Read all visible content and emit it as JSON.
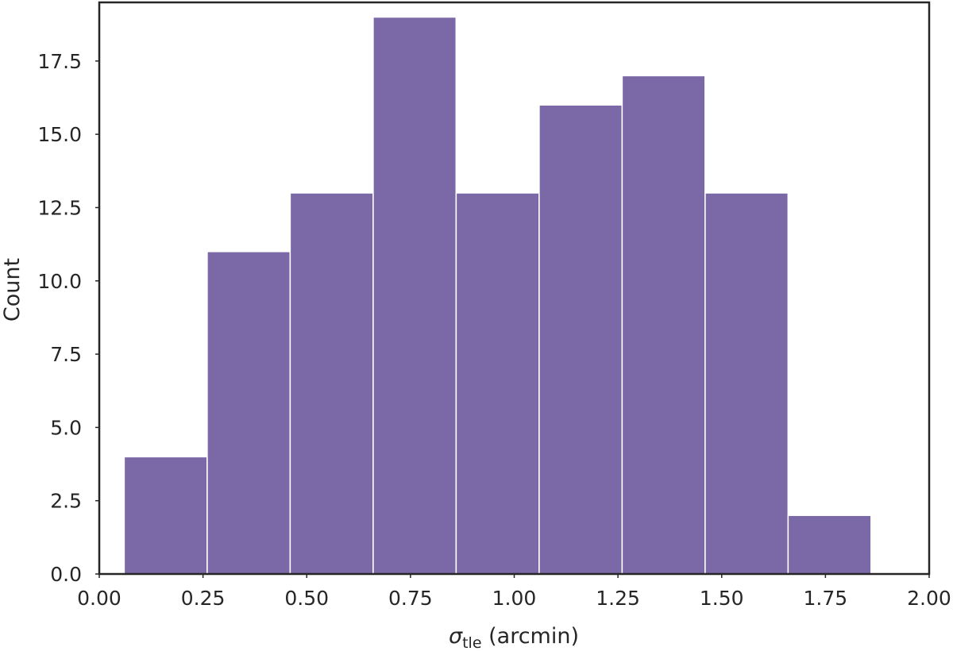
{
  "chart_data": {
    "type": "bar",
    "subtype": "histogram",
    "bin_edges": [
      0.06,
      0.26,
      0.46,
      0.66,
      0.86,
      1.06,
      1.26,
      1.46,
      1.66,
      1.86
    ],
    "values": [
      4,
      11,
      13,
      19,
      13,
      16,
      17,
      13,
      2
    ],
    "xlim": [
      0.0,
      2.0
    ],
    "ylim": [
      0.0,
      19.5
    ],
    "xticks": [
      "0.00",
      "0.25",
      "0.50",
      "0.75",
      "1.00",
      "1.25",
      "1.50",
      "1.75",
      "2.00"
    ],
    "yticks": [
      "0.0",
      "2.5",
      "5.0",
      "7.5",
      "10.0",
      "12.5",
      "15.0",
      "17.5"
    ],
    "xlabel_symbol": "σ",
    "xlabel_subscript": "tle",
    "xlabel_unit": " (arcmin)",
    "ylabel": "Count",
    "grid": false,
    "bar_color": "#7b68a6",
    "bar_edge_color": "#ffffff",
    "frame_color": "#262626"
  }
}
